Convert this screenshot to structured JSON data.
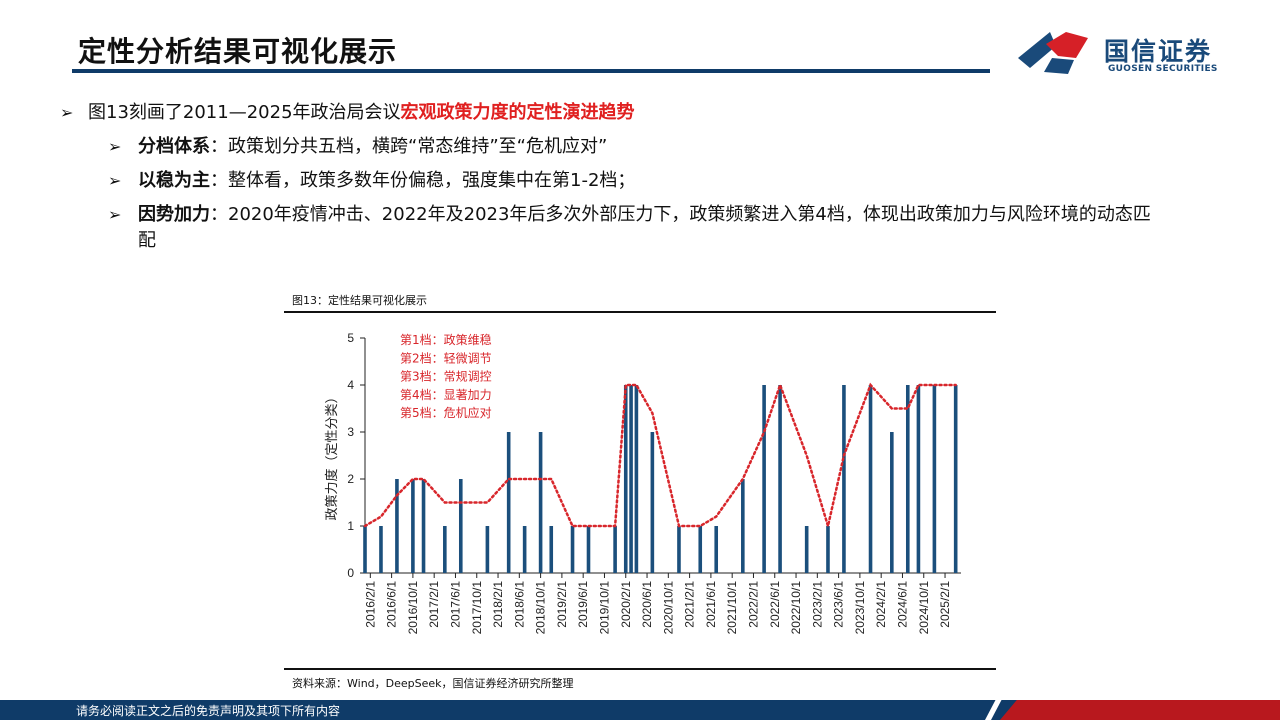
{
  "header": {
    "title": "定性分析结果可视化展示",
    "logo_cn": "国信证券",
    "logo_en": "GUOSEN SECURITIES"
  },
  "bullets": {
    "main": {
      "prefix": "图13刻画了2011—2025年政治局会议",
      "highlight": "宏观政策力度的定性演进趋势"
    },
    "items": [
      {
        "keyword": "分档体系",
        "text": "：政策划分共五档，横跨“常态维持”至“危机应对”"
      },
      {
        "keyword": "以稳为主",
        "text": "：整体看，政策多数年份偏稳，强度集中在第1-2档；"
      },
      {
        "keyword": "因势加力",
        "text": "：2020年疫情冲击、2022年及2023年后多次外部压力下，政策频繁进入第4档，体现出政策加力与风险环境的动态匹配"
      }
    ]
  },
  "figure": {
    "caption": "图13：定性结果可视化展示",
    "source": "资料来源：Wind，DeepSeek，国信证券经济研究所整理"
  },
  "chart_data": {
    "type": "bar",
    "ylabel": "政策力度（定性分类）",
    "ylim": [
      0,
      5
    ],
    "yticks": [
      "0",
      "1",
      "2",
      "3",
      "4",
      "5"
    ],
    "x_tick_labels": [
      "2016/2/1",
      "2016/6/1",
      "2016/10/1",
      "2017/2/1",
      "2017/6/1",
      "2017/10/1",
      "2018/2/1",
      "2018/6/1",
      "2018/10/1",
      "2019/2/1",
      "2019/6/1",
      "2019/10/1",
      "2020/2/1",
      "2020/6/1",
      "2020/10/1",
      "2021/2/1",
      "2021/6/1",
      "2021/10/1",
      "2022/2/1",
      "2022/6/1",
      "2022/10/1",
      "2023/2/1",
      "2023/6/1",
      "2023/10/1",
      "2024/2/1",
      "2024/6/1",
      "2024/10/1",
      "2025/2/1"
    ],
    "legend_text": [
      "第1档：政策维稳",
      "第2档：轻微调节",
      "第3档：常规调控",
      "第4档：显著加力",
      "第5档：危机应对"
    ],
    "bar_color": "#1b4f7c",
    "line_color": "#d8262b",
    "bars": [
      {
        "x": "2016/1",
        "v": 1
      },
      {
        "x": "2016/4",
        "v": 1
      },
      {
        "x": "2016/7",
        "v": 2
      },
      {
        "x": "2016/10",
        "v": 2
      },
      {
        "x": "2016/12",
        "v": 2
      },
      {
        "x": "2017/4",
        "v": 1
      },
      {
        "x": "2017/7",
        "v": 2
      },
      {
        "x": "2017/12",
        "v": 1
      },
      {
        "x": "2018/4",
        "v": 3
      },
      {
        "x": "2018/7",
        "v": 1
      },
      {
        "x": "2018/10",
        "v": 3
      },
      {
        "x": "2018/12",
        "v": 1
      },
      {
        "x": "2019/4",
        "v": 1
      },
      {
        "x": "2019/7",
        "v": 1
      },
      {
        "x": "2019/12",
        "v": 1
      },
      {
        "x": "2020/2",
        "v": 4
      },
      {
        "x": "2020/3",
        "v": 4
      },
      {
        "x": "2020/4",
        "v": 4
      },
      {
        "x": "2020/7",
        "v": 3
      },
      {
        "x": "2020/12",
        "v": 1
      },
      {
        "x": "2021/4",
        "v": 1
      },
      {
        "x": "2021/7",
        "v": 1
      },
      {
        "x": "2021/12",
        "v": 2
      },
      {
        "x": "2022/4",
        "v": 4
      },
      {
        "x": "2022/7",
        "v": 4
      },
      {
        "x": "2022/12",
        "v": 1
      },
      {
        "x": "2023/4",
        "v": 1
      },
      {
        "x": "2023/7",
        "v": 4
      },
      {
        "x": "2023/12",
        "v": 4
      },
      {
        "x": "2024/4",
        "v": 3
      },
      {
        "x": "2024/7",
        "v": 4
      },
      {
        "x": "2024/9",
        "v": 4
      },
      {
        "x": "2024/12",
        "v": 4
      },
      {
        "x": "2025/4",
        "v": 4
      }
    ],
    "trend": [
      {
        "x": "2016/1",
        "v": 1
      },
      {
        "x": "2016/4",
        "v": 1.2
      },
      {
        "x": "2016/7",
        "v": 1.65
      },
      {
        "x": "2016/10",
        "v": 2
      },
      {
        "x": "2016/12",
        "v": 2
      },
      {
        "x": "2017/4",
        "v": 1.5
      },
      {
        "x": "2017/7",
        "v": 1.5
      },
      {
        "x": "2017/12",
        "v": 1.5
      },
      {
        "x": "2018/4",
        "v": 2
      },
      {
        "x": "2018/7",
        "v": 2
      },
      {
        "x": "2018/10",
        "v": 2
      },
      {
        "x": "2018/12",
        "v": 2
      },
      {
        "x": "2019/4",
        "v": 1
      },
      {
        "x": "2019/7",
        "v": 1
      },
      {
        "x": "2019/12",
        "v": 1
      },
      {
        "x": "2020/2",
        "v": 4
      },
      {
        "x": "2020/3",
        "v": 4
      },
      {
        "x": "2020/4",
        "v": 4
      },
      {
        "x": "2020/7",
        "v": 3.4
      },
      {
        "x": "2020/12",
        "v": 1
      },
      {
        "x": "2021/4",
        "v": 1
      },
      {
        "x": "2021/7",
        "v": 1.2
      },
      {
        "x": "2021/12",
        "v": 2
      },
      {
        "x": "2022/4",
        "v": 3
      },
      {
        "x": "2022/7",
        "v": 4
      },
      {
        "x": "2022/12",
        "v": 2.5
      },
      {
        "x": "2023/4",
        "v": 1
      },
      {
        "x": "2023/7",
        "v": 2.5
      },
      {
        "x": "2023/12",
        "v": 4
      },
      {
        "x": "2024/4",
        "v": 3.5
      },
      {
        "x": "2024/7",
        "v": 3.5
      },
      {
        "x": "2024/9",
        "v": 4
      },
      {
        "x": "2024/12",
        "v": 4
      },
      {
        "x": "2025/4",
        "v": 4
      }
    ]
  },
  "footer": {
    "disclaimer": "请务必阅读正文之后的免责声明及其项下所有内容"
  }
}
